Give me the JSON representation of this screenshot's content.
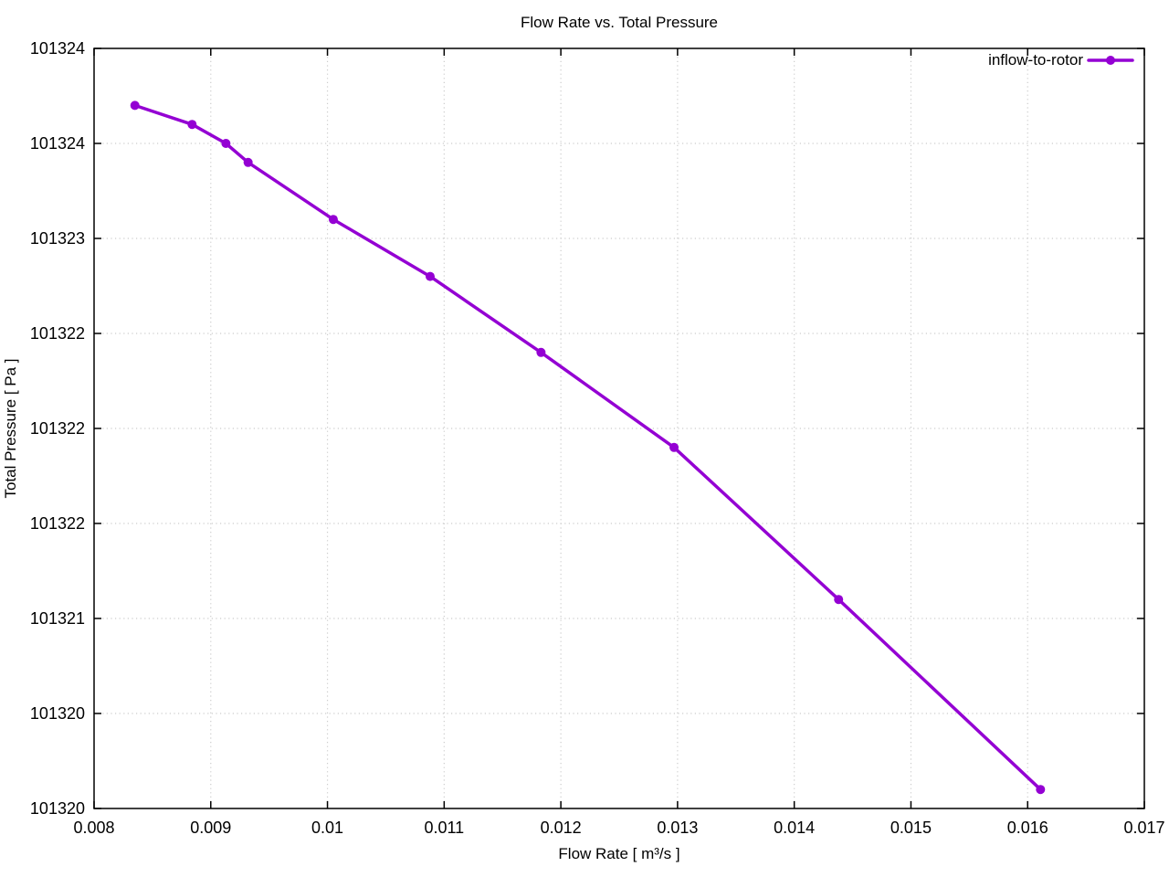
{
  "colors": {
    "background": "#ffffff",
    "frame": "#000000",
    "grid": "#cccccc",
    "text": "#000000",
    "series_line": "#9400D3"
  },
  "chart_data": {
    "type": "line",
    "title": "Flow Rate vs. Total Pressure",
    "xlabel": "Flow Rate [ m³/s ]",
    "ylabel": "Total Pressure [ Pa ]",
    "grid": true,
    "legend": {
      "position": "top-right-inside",
      "entries": [
        "inflow-to-rotor"
      ]
    },
    "xlim": [
      0.008,
      0.017
    ],
    "ylim": [
      101320,
      101324
    ],
    "x_ticks": {
      "values": [
        0.008,
        0.009,
        0.01,
        0.011,
        0.012,
        0.013,
        0.014,
        0.015,
        0.016,
        0.017
      ],
      "labels": [
        "0.008",
        "0.009",
        "0.01",
        "0.011",
        "0.012",
        "0.013",
        "0.014",
        "0.015",
        "0.016",
        "0.017"
      ]
    },
    "y_ticks": {
      "values": [
        101320,
        101320.5,
        101321,
        101321.5,
        101322,
        101322.5,
        101323,
        101323.5,
        101324
      ],
      "labels": [
        "101320",
        "101320",
        "101321",
        "101322",
        "101322",
        "101322",
        "101323",
        "101324",
        "101324"
      ]
    },
    "series": [
      {
        "name": "inflow-to-rotor",
        "color": "#9400D3",
        "marker": "filled-circle",
        "x": [
          0.00835,
          0.00884,
          0.00913,
          0.00932,
          0.01005,
          0.01088,
          0.01183,
          0.01297,
          0.01438,
          0.01611
        ],
        "y": [
          101323.7,
          101323.6,
          101323.5,
          101323.4,
          101323.1,
          101322.8,
          101322.4,
          101321.9,
          101321.1,
          101320.1
        ]
      }
    ]
  }
}
